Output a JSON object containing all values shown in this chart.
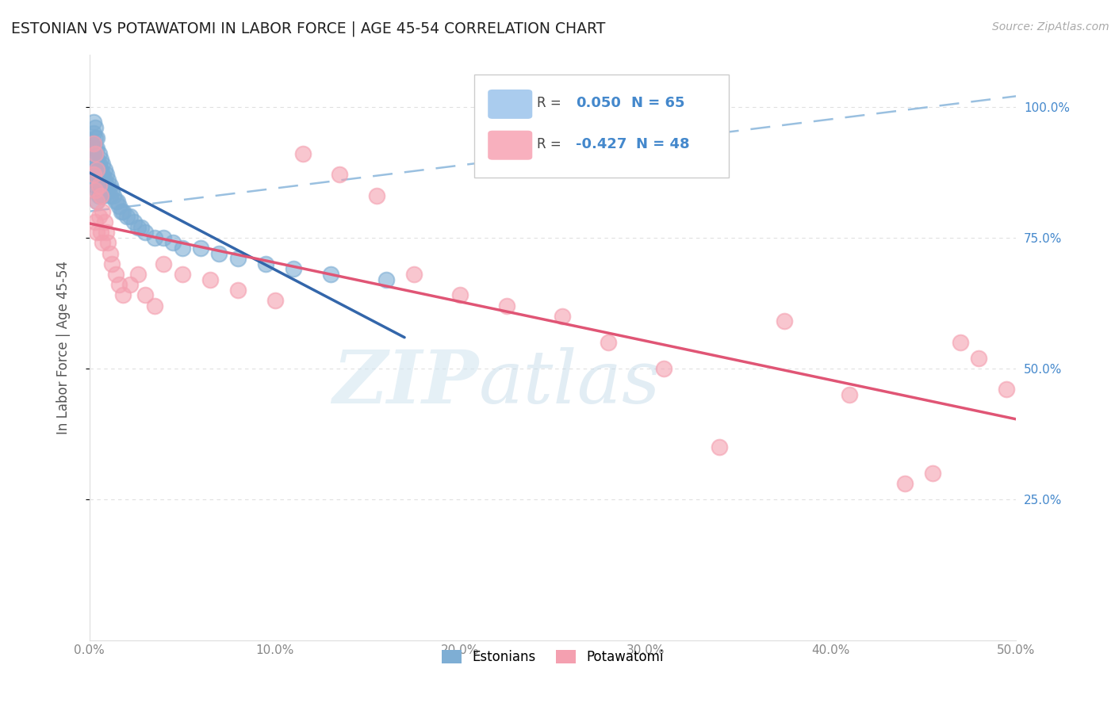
{
  "title": "ESTONIAN VS POTAWATOMI IN LABOR FORCE | AGE 45-54 CORRELATION CHART",
  "source_text": "Source: ZipAtlas.com",
  "ylabel": "In Labor Force | Age 45-54",
  "xlim": [
    0.0,
    0.5
  ],
  "ylim": [
    -0.02,
    1.1
  ],
  "xtick_vals": [
    0.0,
    0.1,
    0.2,
    0.3,
    0.4,
    0.5
  ],
  "xtick_labels": [
    "0.0%",
    "10.0%",
    "20.0%",
    "30.0%",
    "40.0%",
    "50.0%"
  ],
  "ytick_vals": [
    0.25,
    0.5,
    0.75,
    1.0
  ],
  "ytick_labels": [
    "25.0%",
    "50.0%",
    "75.0%",
    "100.0%"
  ],
  "estonian_color": "#7eaed4",
  "potawatomi_color": "#f4a0b0",
  "estonian_line_color": "#3366aa",
  "potawatomi_line_color": "#e05575",
  "dashed_line_color": "#9ac0e0",
  "estonian_R": 0.05,
  "estonian_N": 65,
  "potawatomi_R": -0.427,
  "potawatomi_N": 48,
  "background_color": "#ffffff",
  "watermark_zip": "ZIP",
  "watermark_atlas": "atlas",
  "watermark_color_zip": "#c5d8ea",
  "watermark_color_atlas": "#b0c8dc",
  "grid_color": "#e0e0e0",
  "tick_color": "#4488cc",
  "estonian_x": [
    0.002,
    0.002,
    0.002,
    0.002,
    0.003,
    0.003,
    0.003,
    0.003,
    0.003,
    0.003,
    0.003,
    0.003,
    0.004,
    0.004,
    0.004,
    0.004,
    0.004,
    0.004,
    0.004,
    0.005,
    0.005,
    0.005,
    0.005,
    0.005,
    0.006,
    0.006,
    0.006,
    0.006,
    0.007,
    0.007,
    0.007,
    0.007,
    0.008,
    0.008,
    0.008,
    0.009,
    0.009,
    0.01,
    0.01,
    0.011,
    0.011,
    0.012,
    0.013,
    0.014,
    0.015,
    0.016,
    0.017,
    0.018,
    0.02,
    0.022,
    0.024,
    0.026,
    0.028,
    0.03,
    0.035,
    0.04,
    0.045,
    0.05,
    0.06,
    0.07,
    0.08,
    0.095,
    0.11,
    0.13,
    0.16
  ],
  "estonian_y": [
    0.97,
    0.95,
    0.93,
    0.91,
    0.96,
    0.94,
    0.92,
    0.9,
    0.88,
    0.87,
    0.86,
    0.85,
    0.94,
    0.92,
    0.9,
    0.88,
    0.86,
    0.84,
    0.82,
    0.91,
    0.89,
    0.87,
    0.85,
    0.83,
    0.9,
    0.88,
    0.86,
    0.84,
    0.89,
    0.87,
    0.85,
    0.83,
    0.88,
    0.86,
    0.84,
    0.87,
    0.85,
    0.86,
    0.84,
    0.85,
    0.83,
    0.84,
    0.83,
    0.82,
    0.82,
    0.81,
    0.8,
    0.8,
    0.79,
    0.79,
    0.78,
    0.77,
    0.77,
    0.76,
    0.75,
    0.75,
    0.74,
    0.73,
    0.73,
    0.72,
    0.71,
    0.7,
    0.69,
    0.68,
    0.67
  ],
  "potawatomi_x": [
    0.002,
    0.002,
    0.003,
    0.003,
    0.003,
    0.004,
    0.004,
    0.004,
    0.005,
    0.005,
    0.006,
    0.006,
    0.007,
    0.007,
    0.008,
    0.009,
    0.01,
    0.011,
    0.012,
    0.014,
    0.016,
    0.018,
    0.022,
    0.026,
    0.03,
    0.035,
    0.04,
    0.05,
    0.065,
    0.08,
    0.1,
    0.115,
    0.135,
    0.155,
    0.175,
    0.2,
    0.225,
    0.255,
    0.28,
    0.31,
    0.34,
    0.375,
    0.41,
    0.44,
    0.455,
    0.47,
    0.48,
    0.495
  ],
  "potawatomi_y": [
    0.93,
    0.87,
    0.91,
    0.84,
    0.78,
    0.88,
    0.82,
    0.76,
    0.85,
    0.79,
    0.83,
    0.76,
    0.8,
    0.74,
    0.78,
    0.76,
    0.74,
    0.72,
    0.7,
    0.68,
    0.66,
    0.64,
    0.66,
    0.68,
    0.64,
    0.62,
    0.7,
    0.68,
    0.67,
    0.65,
    0.63,
    0.91,
    0.87,
    0.83,
    0.68,
    0.64,
    0.62,
    0.6,
    0.55,
    0.5,
    0.35,
    0.59,
    0.45,
    0.28,
    0.3,
    0.55,
    0.52,
    0.46
  ],
  "dashed_line_x": [
    0.0,
    0.5
  ],
  "dashed_line_y": [
    0.8,
    1.02
  ],
  "legend_R_color": "#4488cc",
  "legend_text_color": "#333333"
}
